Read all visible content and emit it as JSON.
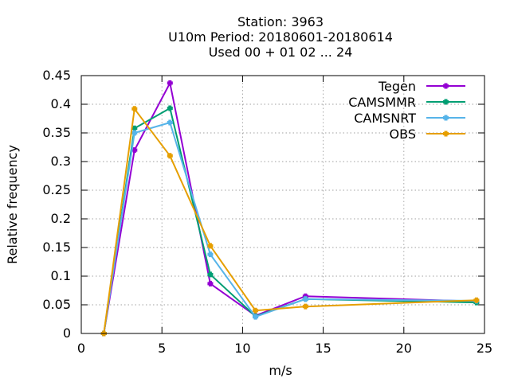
{
  "chart_data": {
    "type": "line",
    "title_lines": [
      "Station:     3963",
      "U10m  Period: 20180601-20180614",
      "Used  00 + 01 02 ... 24"
    ],
    "xlabel": "m/s",
    "ylabel": "Relative frequency",
    "xlim": [
      0,
      25
    ],
    "ylim": [
      0,
      0.45
    ],
    "xticks": [
      0,
      5,
      10,
      15,
      20,
      25
    ],
    "yticks": [
      0,
      0.05,
      0.1,
      0.15,
      0.2,
      0.25,
      0.3,
      0.35,
      0.4,
      0.45
    ],
    "ytick_labels": [
      "0",
      "0.05",
      "0.1",
      "0.15",
      "0.2",
      "0.25",
      "0.3",
      "0.35",
      "0.4",
      "0.45"
    ],
    "grid": true,
    "legend_position": "top-right",
    "x": [
      1.4,
      3.3,
      5.5,
      8.0,
      10.8,
      13.9,
      24.5
    ],
    "series": [
      {
        "name": "Tegen",
        "color": "#9400d3",
        "values": [
          0.0,
          0.32,
          0.437,
          0.087,
          0.031,
          0.065,
          0.056
        ]
      },
      {
        "name": "CAMSMMR",
        "color": "#009e73",
        "values": [
          0.0,
          0.358,
          0.393,
          0.103,
          0.03,
          0.06,
          0.054
        ]
      },
      {
        "name": "CAMSNRT",
        "color": "#56b4e9",
        "values": [
          0.0,
          0.35,
          0.368,
          0.138,
          0.029,
          0.06,
          0.057
        ]
      },
      {
        "name": "OBS",
        "color": "#e69f00",
        "values": [
          0.0,
          0.392,
          0.31,
          0.153,
          0.04,
          0.047,
          0.058
        ]
      }
    ]
  }
}
